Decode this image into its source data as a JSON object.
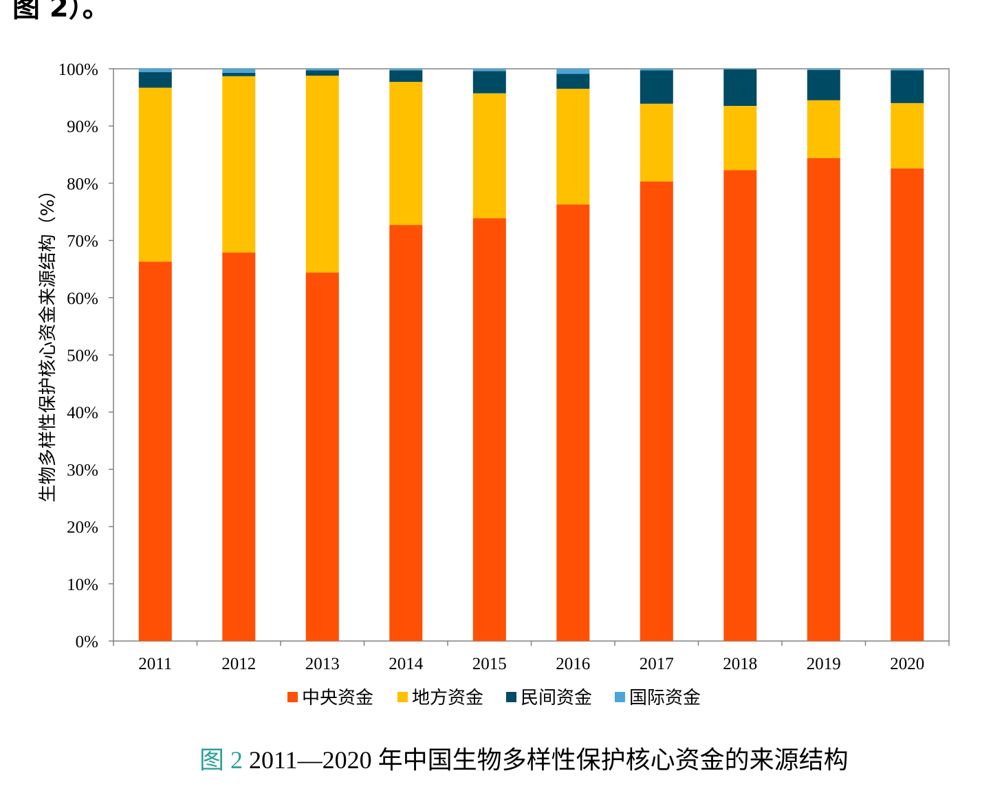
{
  "top_text": "图 2）。",
  "caption": {
    "label": "图 2",
    "text": "2011—2020 年中国生物多样性保护核心资金的来源结构"
  },
  "chart_data": {
    "type": "bar",
    "stacked": true,
    "title": "",
    "xlabel": "",
    "ylabel": "生物多样性保护核心资金来源结构（%）",
    "ylim": [
      0,
      100
    ],
    "yticks": [
      "0%",
      "10%",
      "20%",
      "30%",
      "40%",
      "50%",
      "60%",
      "70%",
      "80%",
      "90%",
      "100%"
    ],
    "categories": [
      "2011",
      "2012",
      "2013",
      "2014",
      "2015",
      "2016",
      "2017",
      "2018",
      "2019",
      "2020"
    ],
    "series": [
      {
        "name": "中央资金",
        "color": "#FF5005",
        "values": [
          66.3,
          67.9,
          64.4,
          72.7,
          73.9,
          76.3,
          80.3,
          82.3,
          84.4,
          82.6
        ]
      },
      {
        "name": "地方资金",
        "color": "#FFC000",
        "values": [
          30.4,
          30.8,
          34.4,
          25.0,
          21.8,
          20.2,
          13.6,
          11.2,
          10.1,
          11.4
        ]
      },
      {
        "name": "民间资金",
        "color": "#004B64",
        "values": [
          2.7,
          0.6,
          0.9,
          2.0,
          3.9,
          2.6,
          5.8,
          6.4,
          5.3,
          5.7
        ]
      },
      {
        "name": "国际资金",
        "color": "#4BA5D7",
        "values": [
          0.6,
          0.7,
          0.3,
          0.3,
          0.4,
          0.9,
          0.3,
          0.1,
          0.2,
          0.3
        ]
      }
    ],
    "legend_position": "bottom",
    "grid": false
  }
}
